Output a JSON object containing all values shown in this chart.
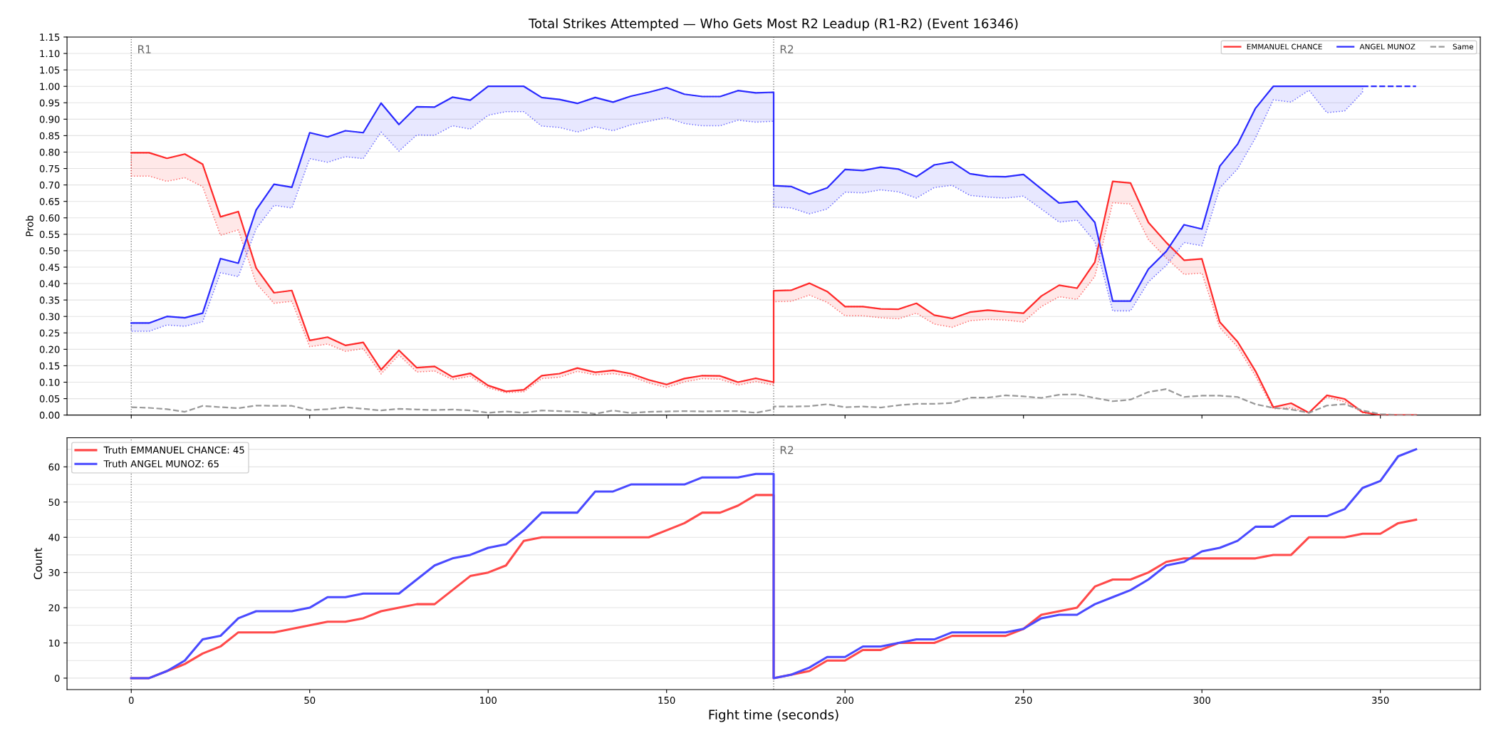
{
  "chart_data": [
    {
      "type": "line",
      "title": "Total Strikes Attempted — Who Gets Most R2 Leadup (R1-R2) (Event 16346)",
      "ylabel": "Prob",
      "xlim": [
        -18,
        378
      ],
      "xticks": [
        0,
        50,
        100,
        150,
        200,
        250,
        300,
        350
      ],
      "ylim": [
        0,
        1.15
      ],
      "yticks": [
        {
          "value": 0,
          "label": "0.00"
        },
        {
          "value": 0.05,
          "label": "0.05"
        },
        {
          "value": 0.1,
          "label": "0.10"
        },
        {
          "value": 0.15,
          "label": "0.15"
        },
        {
          "value": 0.2,
          "label": "0.20"
        },
        {
          "value": 0.25,
          "label": "0.25"
        },
        {
          "value": 0.3,
          "label": "0.30"
        },
        {
          "value": 0.35,
          "label": "0.35"
        },
        {
          "value": 0.4,
          "label": "0.40"
        },
        {
          "value": 0.45,
          "label": "0.45"
        },
        {
          "value": 0.5,
          "label": "0.50"
        },
        {
          "value": 0.55,
          "label": "0.55"
        },
        {
          "value": 0.6,
          "label": "0.60"
        },
        {
          "value": 0.65,
          "label": "0.65"
        },
        {
          "value": 0.7,
          "label": "0.70"
        },
        {
          "value": 0.75,
          "label": "0.75"
        },
        {
          "value": 0.8,
          "label": "0.80"
        },
        {
          "value": 0.85,
          "label": "0.85"
        },
        {
          "value": 0.9,
          "label": "0.90"
        },
        {
          "value": 0.95,
          "label": "0.95"
        },
        {
          "value": 1.0,
          "label": "1.00"
        },
        {
          "value": 1.05,
          "label": "1.05"
        },
        {
          "value": 1.1,
          "label": "1.10"
        },
        {
          "value": 1.15,
          "label": "1.15"
        }
      ],
      "tick_labels": "y",
      "grid": "y",
      "legend": "top right",
      "ref_lines": [
        {
          "axis": "x",
          "value": 0,
          "label": "R1",
          "color": "#808080",
          "line_style": "dotted"
        },
        {
          "axis": "x",
          "value": 180,
          "label": "R2",
          "color": "#808080",
          "line_style": "dotted"
        }
      ],
      "series": [
        {
          "name": "EMMANUEL CHANCE",
          "color": "#ff2a2a",
          "line_style": "solid",
          "x": [
            0,
            5,
            10,
            15,
            20,
            25,
            30,
            35,
            40,
            45,
            50,
            55,
            60,
            65,
            70,
            75,
            80,
            85,
            90,
            95,
            100,
            105,
            110,
            115,
            120,
            125,
            130,
            135,
            140,
            145,
            150,
            155,
            160,
            165,
            170,
            175,
            180,
            180,
            185,
            190,
            195,
            200,
            205,
            210,
            215,
            220,
            225,
            230,
            235,
            240,
            245,
            250,
            255,
            260,
            265,
            270,
            275,
            280,
            285,
            290,
            295,
            300,
            305,
            310,
            315,
            320,
            325,
            330,
            335,
            340,
            345,
            350,
            355,
            360
          ],
          "values": [
            0.798,
            0.798,
            0.781,
            0.794,
            0.763,
            0.603,
            0.619,
            0.447,
            0.372,
            0.379,
            0.227,
            0.237,
            0.212,
            0.221,
            0.138,
            0.197,
            0.144,
            0.148,
            0.116,
            0.127,
            0.09,
            0.072,
            0.077,
            0.12,
            0.126,
            0.143,
            0.13,
            0.136,
            0.126,
            0.107,
            0.093,
            0.111,
            0.12,
            0.119,
            0.1,
            0.112,
            0.1,
            0.378,
            0.38,
            0.401,
            0.376,
            0.33,
            0.33,
            0.323,
            0.322,
            0.34,
            0.304,
            0.294,
            0.313,
            0.319,
            0.314,
            0.31,
            0.362,
            0.395,
            0.386,
            0.465,
            0.711,
            0.706,
            0.586,
            0.525,
            0.471,
            0.475,
            0.283,
            0.223,
            0.134,
            0.024,
            0.036,
            0.007,
            0.06,
            0.049,
            0.009,
            0,
            0,
            0
          ],
          "lower": [
            0.727,
            0.727,
            0.711,
            0.722,
            0.695,
            0.547,
            0.563,
            0.401,
            0.34,
            0.346,
            0.208,
            0.216,
            0.194,
            0.202,
            0.125,
            0.183,
            0.131,
            0.134,
            0.108,
            0.118,
            0.083,
            0.068,
            0.071,
            0.111,
            0.115,
            0.133,
            0.122,
            0.126,
            0.118,
            0.098,
            0.084,
            0.101,
            0.111,
            0.109,
            0.091,
            0.102,
            0.091,
            0.345,
            0.346,
            0.365,
            0.343,
            0.302,
            0.302,
            0.296,
            0.293,
            0.31,
            0.277,
            0.267,
            0.287,
            0.291,
            0.289,
            0.283,
            0.33,
            0.36,
            0.352,
            0.422,
            0.646,
            0.642,
            0.534,
            0.478,
            0.428,
            0.432,
            0.266,
            0.207,
            0.119,
            0.019,
            0.022,
            0.007,
            0.055,
            0.04,
            0.007,
            0,
            0,
            0
          ],
          "upper": [
            0.798,
            0.798,
            0.781,
            0.794,
            0.763,
            0.603,
            0.619,
            0.447,
            0.372,
            0.379,
            0.227,
            0.237,
            0.212,
            0.221,
            0.138,
            0.197,
            0.144,
            0.148,
            0.116,
            0.127,
            0.09,
            0.072,
            0.077,
            0.12,
            0.126,
            0.143,
            0.13,
            0.136,
            0.126,
            0.107,
            0.093,
            0.111,
            0.12,
            0.119,
            0.1,
            0.112,
            0.1,
            0.378,
            0.38,
            0.401,
            0.376,
            0.33,
            0.33,
            0.323,
            0.322,
            0.34,
            0.304,
            0.294,
            0.313,
            0.319,
            0.314,
            0.31,
            0.362,
            0.395,
            0.386,
            0.465,
            0.711,
            0.706,
            0.586,
            0.525,
            0.471,
            0.475,
            0.283,
            0.223,
            0.134,
            0.024,
            0.036,
            0.007,
            0.06,
            0.049,
            0.009,
            0,
            0,
            0
          ]
        },
        {
          "name": "ANGEL MUNOZ",
          "color": "#2a2aff",
          "line_style": "solid",
          "x": [
            0,
            5,
            10,
            15,
            20,
            25,
            30,
            35,
            40,
            45,
            50,
            55,
            60,
            65,
            70,
            75,
            80,
            85,
            90,
            95,
            100,
            105,
            110,
            115,
            120,
            125,
            130,
            135,
            140,
            145,
            150,
            155,
            160,
            165,
            170,
            175,
            180,
            180,
            185,
            190,
            195,
            200,
            205,
            210,
            215,
            220,
            225,
            230,
            235,
            240,
            245,
            250,
            255,
            260,
            265,
            270,
            275,
            280,
            285,
            290,
            295,
            300,
            305,
            310,
            315,
            320,
            325,
            330,
            335,
            340,
            345
          ],
          "values": [
            0.28,
            0.28,
            0.3,
            0.296,
            0.31,
            0.476,
            0.462,
            0.624,
            0.702,
            0.693,
            0.859,
            0.846,
            0.865,
            0.859,
            0.949,
            0.884,
            0.938,
            0.937,
            0.967,
            0.958,
            1.0,
            1.0,
            1.0,
            0.966,
            0.96,
            0.948,
            0.966,
            0.952,
            0.97,
            0.982,
            0.996,
            0.976,
            0.969,
            0.969,
            0.987,
            0.98,
            0.982,
            0.698,
            0.695,
            0.672,
            0.691,
            0.747,
            0.744,
            0.754,
            0.748,
            0.725,
            0.761,
            0.77,
            0.734,
            0.726,
            0.725,
            0.732,
            0.688,
            0.645,
            0.65,
            0.586,
            0.347,
            0.347,
            0.444,
            0.498,
            0.579,
            0.566,
            0.757,
            0.824,
            0.933,
            1.0,
            1.0,
            1.0,
            1.0,
            1.0,
            1.0
          ],
          "lower": [
            0.255,
            0.255,
            0.274,
            0.27,
            0.284,
            0.433,
            0.421,
            0.567,
            0.638,
            0.63,
            0.78,
            0.769,
            0.786,
            0.78,
            0.861,
            0.803,
            0.852,
            0.851,
            0.88,
            0.87,
            0.912,
            0.923,
            0.923,
            0.879,
            0.875,
            0.861,
            0.877,
            0.865,
            0.883,
            0.894,
            0.905,
            0.887,
            0.88,
            0.88,
            0.897,
            0.891,
            0.894,
            0.633,
            0.63,
            0.612,
            0.627,
            0.678,
            0.676,
            0.685,
            0.679,
            0.66,
            0.692,
            0.699,
            0.668,
            0.663,
            0.66,
            0.666,
            0.627,
            0.587,
            0.593,
            0.528,
            0.317,
            0.317,
            0.405,
            0.455,
            0.525,
            0.515,
            0.691,
            0.749,
            0.843,
            0.959,
            0.952,
            0.988,
            0.92,
            0.925,
            0.982
          ],
          "upper": [
            0.28,
            0.28,
            0.3,
            0.296,
            0.31,
            0.476,
            0.462,
            0.624,
            0.702,
            0.693,
            0.859,
            0.846,
            0.865,
            0.859,
            0.949,
            0.884,
            0.938,
            0.937,
            0.967,
            0.958,
            1.0,
            1.0,
            1.0,
            0.966,
            0.96,
            0.948,
            0.966,
            0.952,
            0.97,
            0.982,
            0.996,
            0.976,
            0.969,
            0.969,
            0.987,
            0.98,
            0.982,
            0.698,
            0.695,
            0.672,
            0.691,
            0.747,
            0.744,
            0.754,
            0.748,
            0.725,
            0.761,
            0.77,
            0.734,
            0.726,
            0.725,
            0.732,
            0.688,
            0.645,
            0.65,
            0.586,
            0.347,
            0.347,
            0.444,
            0.498,
            0.579,
            0.566,
            0.757,
            0.824,
            0.933,
            1.0,
            1.0,
            1.0,
            1.0,
            1.0,
            1.0
          ]
        },
        {
          "color": "#2a2aff",
          "line_style": "dashed",
          "x": [
            345,
            350,
            355,
            360
          ],
          "values": [
            1.0,
            1.0,
            1.0,
            1.0
          ]
        },
        {
          "name": "Same",
          "color": "#999999",
          "line_style": "dashed",
          "x": [
            0,
            5,
            10,
            15,
            20,
            25,
            30,
            35,
            40,
            45,
            50,
            55,
            60,
            65,
            70,
            75,
            80,
            85,
            90,
            95,
            100,
            105,
            110,
            115,
            120,
            125,
            130,
            135,
            140,
            145,
            150,
            155,
            160,
            165,
            170,
            175,
            180,
            180,
            185,
            190,
            195,
            200,
            205,
            210,
            215,
            220,
            225,
            230,
            235,
            240,
            245,
            250,
            255,
            260,
            265,
            270,
            275,
            280,
            285,
            290,
            295,
            300,
            305,
            310,
            315,
            320,
            325,
            330,
            335,
            340,
            345,
            350,
            355,
            360
          ],
          "values": [
            0.024,
            0.022,
            0.018,
            0.01,
            0.028,
            0.024,
            0.021,
            0.029,
            0.028,
            0.028,
            0.015,
            0.018,
            0.024,
            0.019,
            0.014,
            0.019,
            0.017,
            0.015,
            0.017,
            0.014,
            0.007,
            0.011,
            0.007,
            0.014,
            0.012,
            0.01,
            0.004,
            0.014,
            0.006,
            0.01,
            0.011,
            0.012,
            0.011,
            0.012,
            0.012,
            0.007,
            0.017,
            0.026,
            0.026,
            0.027,
            0.033,
            0.024,
            0.026,
            0.023,
            0.03,
            0.034,
            0.034,
            0.037,
            0.053,
            0.053,
            0.06,
            0.057,
            0.052,
            0.062,
            0.063,
            0.052,
            0.042,
            0.047,
            0.07,
            0.079,
            0.055,
            0.059,
            0.059,
            0.055,
            0.033,
            0.022,
            0.017,
            0.007,
            0.029,
            0.033,
            0.014,
            0.003,
            0,
            0
          ]
        }
      ]
    },
    {
      "type": "line",
      "xlabel": "Fight time (seconds)",
      "ylabel": "Count",
      "xlim": [
        -18,
        378
      ],
      "xticks": [
        0,
        50,
        100,
        150,
        200,
        250,
        300,
        350
      ],
      "ylim": [
        -3.25,
        68.25
      ],
      "yticks": [
        0,
        {
          "value": 5,
          "label": null
        },
        10,
        {
          "value": 15,
          "label": null
        },
        20,
        {
          "value": 25,
          "label": null
        },
        30,
        {
          "value": 35,
          "label": null
        },
        40,
        {
          "value": 45,
          "label": null
        },
        50,
        {
          "value": 55,
          "label": null
        },
        60,
        {
          "value": 65,
          "label": null
        }
      ],
      "grid": "y",
      "legend": "top left",
      "ref_lines": [
        {
          "axis": "x",
          "value": 0,
          "color": "#808080",
          "line_style": "dotted"
        },
        {
          "axis": "x",
          "value": 180,
          "label": "R2",
          "color": "#808080",
          "line_style": "dotted"
        }
      ],
      "x": [
        0,
        5,
        10,
        15,
        20,
        25,
        30,
        35,
        40,
        45,
        50,
        55,
        60,
        65,
        70,
        75,
        80,
        85,
        90,
        95,
        100,
        105,
        110,
        115,
        120,
        125,
        130,
        135,
        140,
        145,
        150,
        155,
        160,
        165,
        170,
        175,
        180,
        180,
        185,
        190,
        195,
        200,
        205,
        210,
        215,
        220,
        225,
        230,
        235,
        240,
        245,
        250,
        255,
        260,
        265,
        270,
        275,
        280,
        285,
        290,
        295,
        300,
        305,
        310,
        315,
        320,
        325,
        330,
        335,
        340,
        345,
        350,
        355,
        360
      ],
      "series": [
        {
          "name": "Truth EMMANUEL CHANCE: 45",
          "color": "#ff4a4a",
          "line_style": "solid",
          "values": [
            0,
            0,
            2,
            4,
            7,
            9,
            13,
            13,
            13,
            14,
            15,
            16,
            16,
            17,
            19,
            20,
            21,
            21,
            25,
            29,
            30,
            32,
            39,
            40,
            40,
            40,
            40,
            40,
            40,
            40,
            42,
            44,
            47,
            47,
            49,
            52,
            52,
            0,
            1,
            2,
            5,
            5,
            8,
            8,
            10,
            10,
            10,
            12,
            12,
            12,
            12,
            14,
            18,
            19,
            20,
            26,
            28,
            28,
            30,
            33,
            34,
            34,
            34,
            34,
            34,
            35,
            35,
            40,
            40,
            40,
            41,
            41,
            44,
            45
          ]
        },
        {
          "name": "Truth ANGEL MUNOZ: 65",
          "color": "#4a4aff",
          "line_style": "solid",
          "values": [
            0,
            0,
            2,
            5,
            11,
            12,
            17,
            19,
            19,
            19,
            20,
            23,
            23,
            24,
            24,
            24,
            28,
            32,
            34,
            35,
            37,
            38,
            42,
            47,
            47,
            47,
            53,
            53,
            55,
            55,
            55,
            55,
            57,
            57,
            57,
            58,
            58,
            0,
            1,
            3,
            6,
            6,
            9,
            9,
            10,
            11,
            11,
            13,
            13,
            13,
            13,
            14,
            17,
            18,
            18,
            21,
            23,
            25,
            28,
            32,
            33,
            36,
            37,
            39,
            43,
            43,
            46,
            46,
            46,
            48,
            54,
            56,
            63,
            65
          ]
        }
      ]
    }
  ]
}
